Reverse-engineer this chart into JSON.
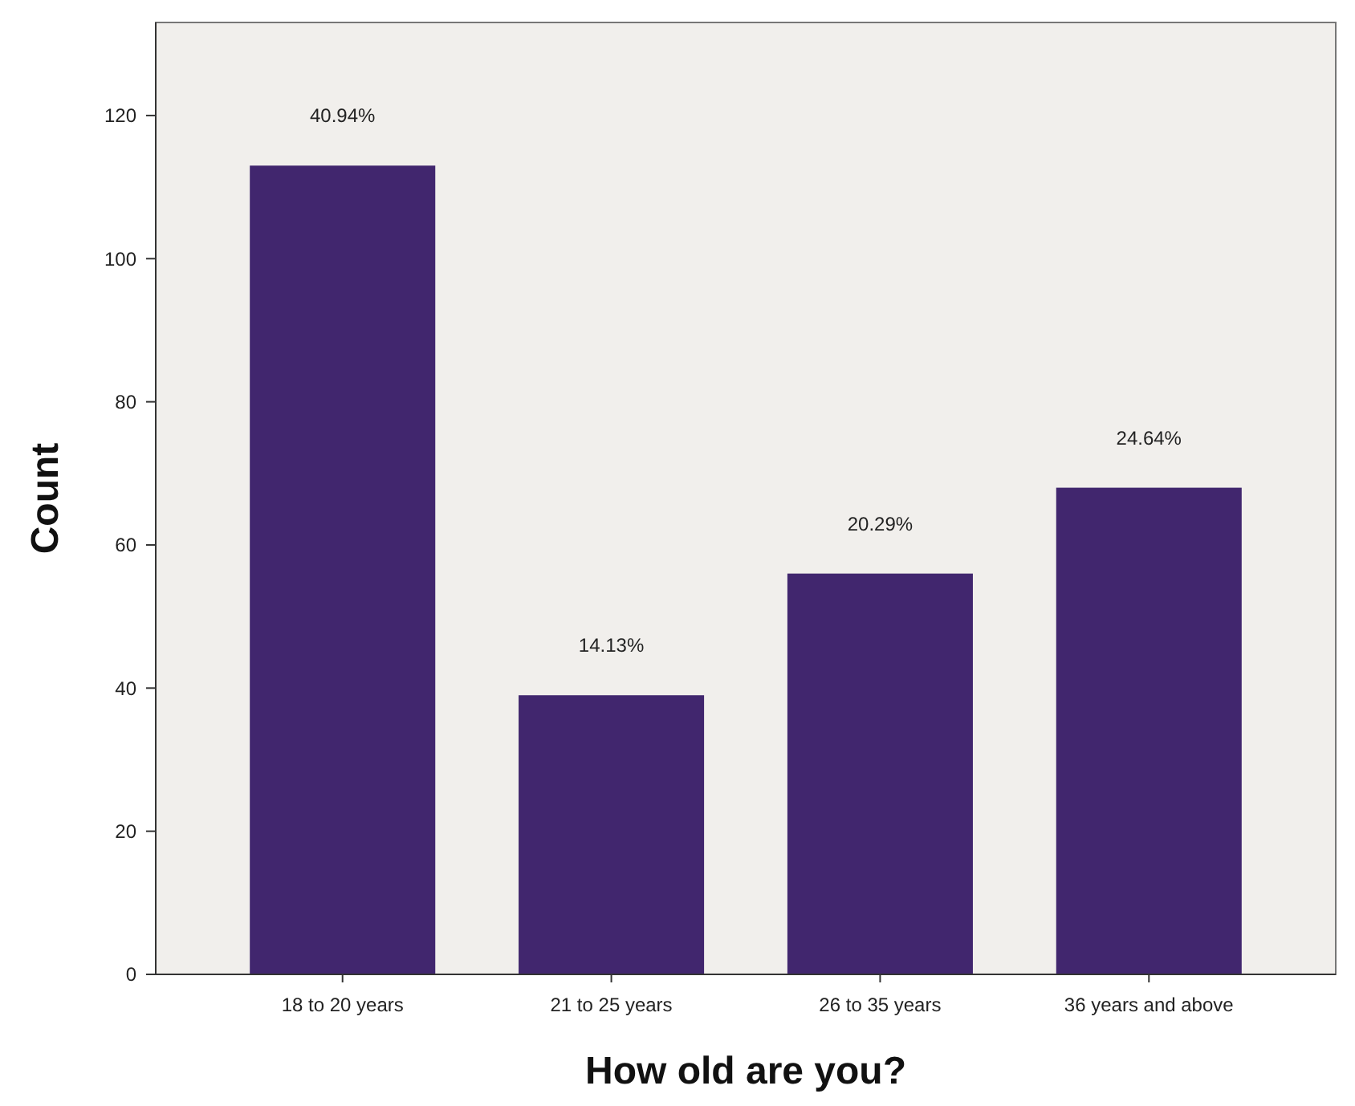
{
  "chart_data": {
    "type": "bar",
    "xlabel": "How old are you?",
    "ylabel": "Count",
    "categories": [
      "18 to 20 years",
      "21 to 25 years",
      "26 to 35 years",
      "36 years and above"
    ],
    "values": [
      113,
      39,
      56,
      68
    ],
    "color": "#41266e",
    "annotations": [
      {
        "text": "40.94%",
        "x": "18 to 20 years",
        "y": 113
      },
      {
        "text": "14.13%",
        "x": "21 to 25 years",
        "y": 39
      },
      {
        "text": "20.29%",
        "x": "26 to 35 years",
        "y": 56
      },
      {
        "text": "24.64%",
        "x": "36 years and above",
        "y": 68
      }
    ],
    "ylim": [
      0,
      133
    ],
    "yticks": [
      0,
      20,
      40,
      60,
      80,
      100,
      120
    ],
    "grid": false
  }
}
